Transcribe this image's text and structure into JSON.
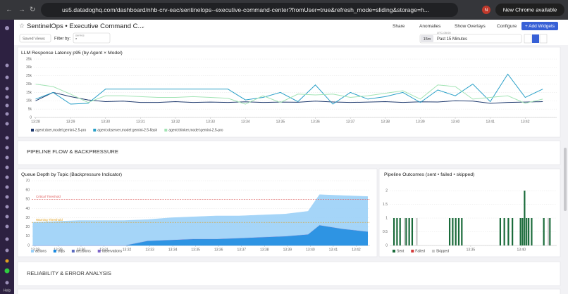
{
  "browser": {
    "url": "us5.datadoghq.com/dashboard/nhb-crv-eac/sentinelops--executive-command-center?fromUser=true&refresh_mode=sliding&storage=h...",
    "profile": "N",
    "update": "New Chrome available"
  },
  "sidebar": {
    "help": "Help"
  },
  "header": {
    "title": "SentinelOps • Executive Command C...",
    "buttons": [
      "Share",
      "Anomalies",
      "Show Overlays",
      "Configure"
    ],
    "add_widgets": "+ Add Widgets"
  },
  "toolbar": {
    "saved_views": "Saved Views",
    "filter_label": "Filter by:",
    "service_label": "service",
    "service_value": "*",
    "timezone": "UTC-05:00",
    "range_short": "15m",
    "range": "Past 15 Minutes"
  },
  "sections": [
    "PIPELINE FLOW & BACKPRESSURE",
    "RELIABILITY & ERROR ANALYSIS"
  ],
  "chart_data": [
    {
      "type": "line",
      "title": "LLM Response Latency p95 (by Agent × Model)",
      "x": [
        28,
        28.5,
        29,
        29.5,
        30,
        30.5,
        31,
        31.5,
        32,
        32.5,
        33,
        33.5,
        34,
        34.5,
        35,
        35.5,
        36,
        36.5,
        37,
        37.5,
        38,
        38.5,
        39,
        39.5,
        40,
        40.5,
        41,
        41.5,
        42,
        42.5
      ],
      "xlim": [
        27.95,
        42.9
      ],
      "xticks": [
        {
          "value": 28,
          "label": "13:28"
        },
        {
          "value": 29,
          "label": "13:29"
        },
        {
          "value": 30,
          "label": "13:30"
        },
        {
          "value": 31,
          "label": "13:31"
        },
        {
          "value": 32,
          "label": "13:32"
        },
        {
          "value": 33,
          "label": "13:33"
        },
        {
          "value": 34,
          "label": "13:34"
        },
        {
          "value": 35,
          "label": "13:35"
        },
        {
          "value": 36,
          "label": "13:36"
        },
        {
          "value": 37,
          "label": "13:37"
        },
        {
          "value": 38,
          "label": "13:38"
        },
        {
          "value": 39,
          "label": "13:39"
        },
        {
          "value": 40,
          "label": "13:40"
        },
        {
          "value": 41,
          "label": "13:41"
        },
        {
          "value": 42,
          "label": "13:42"
        }
      ],
      "ylim": [
        0,
        35000
      ],
      "yticks": [
        0,
        {
          "value": 5000,
          "label": "5k"
        },
        {
          "value": 10000,
          "label": "10k"
        },
        {
          "value": 15000,
          "label": "15k"
        },
        {
          "value": 20000,
          "label": "20k"
        },
        {
          "value": 25000,
          "label": "25k"
        },
        {
          "value": 30000,
          "label": "30k"
        },
        {
          "value": 35000,
          "label": "35k"
        }
      ],
      "grid": true,
      "series": [
        {
          "name": "agent:doer,model:gemini-2.5-pro",
          "color": "#1f3a6e",
          "values": [
            10000,
            15000,
            12500,
            10500,
            9500,
            9800,
            9000,
            9000,
            9500,
            9000,
            9200,
            9000,
            9400,
            9000,
            9200,
            9100,
            9800,
            9300,
            9000,
            9200,
            9500,
            9000,
            9400,
            9300,
            10000,
            9800,
            8500,
            9000,
            9200,
            9500
          ]
        },
        {
          "name": "agent:observer,model:gemini-2.5-flash",
          "color": "#2aa0c8",
          "values": [
            11000,
            15000,
            8000,
            8500,
            17000,
            17000,
            17000,
            17000,
            17000,
            17000,
            17000,
            17000,
            10500,
            12000,
            15000,
            9500,
            19500,
            8000,
            15000,
            11000,
            12500,
            15000,
            9000,
            16500,
            13000,
            20000,
            9500,
            26000,
            12000,
            17000
          ]
        },
        {
          "name": "agent:thinker,model:gemini-2.5-pro",
          "color": "#a3e4b5",
          "values": [
            20000,
            18500,
            14000,
            9000,
            13000,
            13000,
            12500,
            12000,
            12000,
            12500,
            12000,
            11500,
            8000,
            13000,
            9000,
            14000,
            13500,
            14000,
            12000,
            13000,
            14500,
            16000,
            11000,
            19500,
            18500,
            11000,
            12000,
            13000,
            8500,
            11000
          ]
        }
      ]
    },
    {
      "type": "area",
      "title": "Queue Depth by Topic (Backpressure Indicator)",
      "x": [
        27.9,
        28.9,
        29.9,
        30.9,
        31.9,
        32.9,
        33.9,
        34.9,
        35.9,
        36.9,
        37.9,
        38.9,
        39.9,
        40.4,
        41.4,
        42.5
      ],
      "xlim": [
        27.85,
        42.6
      ],
      "xticks": [
        {
          "value": 28,
          "label": "13:28"
        },
        {
          "value": 29,
          "label": "13:29"
        },
        {
          "value": 30,
          "label": "13:30"
        },
        {
          "value": 31,
          "label": "13:31"
        },
        {
          "value": 32,
          "label": "13:32"
        },
        {
          "value": 33,
          "label": "13:33"
        },
        {
          "value": 34,
          "label": "13:34"
        },
        {
          "value": 35,
          "label": "13:35"
        },
        {
          "value": 36,
          "label": "13:36"
        },
        {
          "value": 37,
          "label": "13:37"
        },
        {
          "value": 38,
          "label": "13:38"
        },
        {
          "value": 39,
          "label": "13:39"
        },
        {
          "value": 40,
          "label": "13:40"
        },
        {
          "value": 41,
          "label": "13:41"
        },
        {
          "value": 42,
          "label": "13:42"
        }
      ],
      "ylim": [
        0,
        70
      ],
      "yticks": [
        0,
        10,
        20,
        30,
        40,
        50,
        60,
        70
      ],
      "stacked": true,
      "annotations": [
        {
          "label": "Critical Threshold",
          "value": 50,
          "color": "#e05a5a"
        },
        {
          "label": "Warning Threshold",
          "value": 25,
          "color": "#e0a020"
        }
      ],
      "series": [
        {
          "name": "actions",
          "color": "#9bd0f7",
          "values": [
            25,
            26,
            27,
            27,
            27,
            23,
            24,
            24,
            25,
            24,
            24,
            24,
            25,
            33,
            36,
            38
          ]
        },
        {
          "name": "clips",
          "color": "#1788e0",
          "values": [
            0,
            0,
            0,
            0,
            0,
            5,
            6,
            7,
            7,
            8,
            9,
            10,
            12,
            22,
            18,
            15
          ]
        },
        {
          "name": "decisions",
          "color": "#5b6bbf",
          "values": [
            0,
            0,
            0,
            0,
            0,
            0,
            0,
            0,
            0,
            0,
            0,
            0,
            0,
            0,
            0,
            0
          ]
        },
        {
          "name": "observations",
          "color": "#7f66c9",
          "values": [
            0,
            0,
            0,
            0,
            0,
            0,
            0,
            0,
            0,
            0,
            0,
            0,
            0,
            0,
            0,
            0
          ]
        }
      ]
    },
    {
      "type": "bar",
      "title": "Pipeline Outcomes (sent • failed • skipped)",
      "x": [
        27.5,
        27.8,
        28.1,
        28.4,
        28.7,
        29.0,
        29.3,
        29.6,
        33.0,
        33.3,
        33.6,
        33.9,
        34.2,
        38.0,
        38.4,
        38.8,
        39.2,
        40.0,
        40.2,
        40.4,
        40.6,
        40.8,
        41.1,
        42.3,
        42.6,
        42.9
      ],
      "xlim": [
        27,
        43.5
      ],
      "xticks": [
        {
          "value": 35,
          "label": "13:35"
        },
        {
          "value": 40,
          "label": "13:40"
        }
      ],
      "ylim": [
        0,
        2
      ],
      "yticks": [
        0,
        0.5,
        1,
        1.5,
        2
      ],
      "series": [
        {
          "name": "Sent",
          "color": "#1a6b3a",
          "values": [
            1,
            1,
            1,
            0,
            1,
            1,
            1,
            0,
            1,
            1,
            1,
            1,
            1,
            1,
            1,
            1,
            1,
            1,
            1,
            2,
            1,
            1,
            1,
            1,
            0,
            1
          ]
        },
        {
          "name": "Failed",
          "color": "#d33a3a",
          "values": [
            0,
            0,
            0,
            0,
            0,
            0,
            0,
            0,
            0,
            0,
            0,
            0,
            0,
            0,
            0,
            0,
            0,
            0,
            0,
            0,
            0,
            0,
            0,
            0,
            0,
            0
          ]
        },
        {
          "name": "Skipped",
          "color": "#c8c8c8",
          "values": [
            0,
            0,
            0,
            1,
            0,
            0,
            0,
            1,
            0,
            0,
            0,
            0,
            0,
            0,
            0,
            0,
            0,
            0,
            0,
            0,
            0,
            0,
            0,
            0,
            1,
            0
          ]
        }
      ]
    }
  ]
}
